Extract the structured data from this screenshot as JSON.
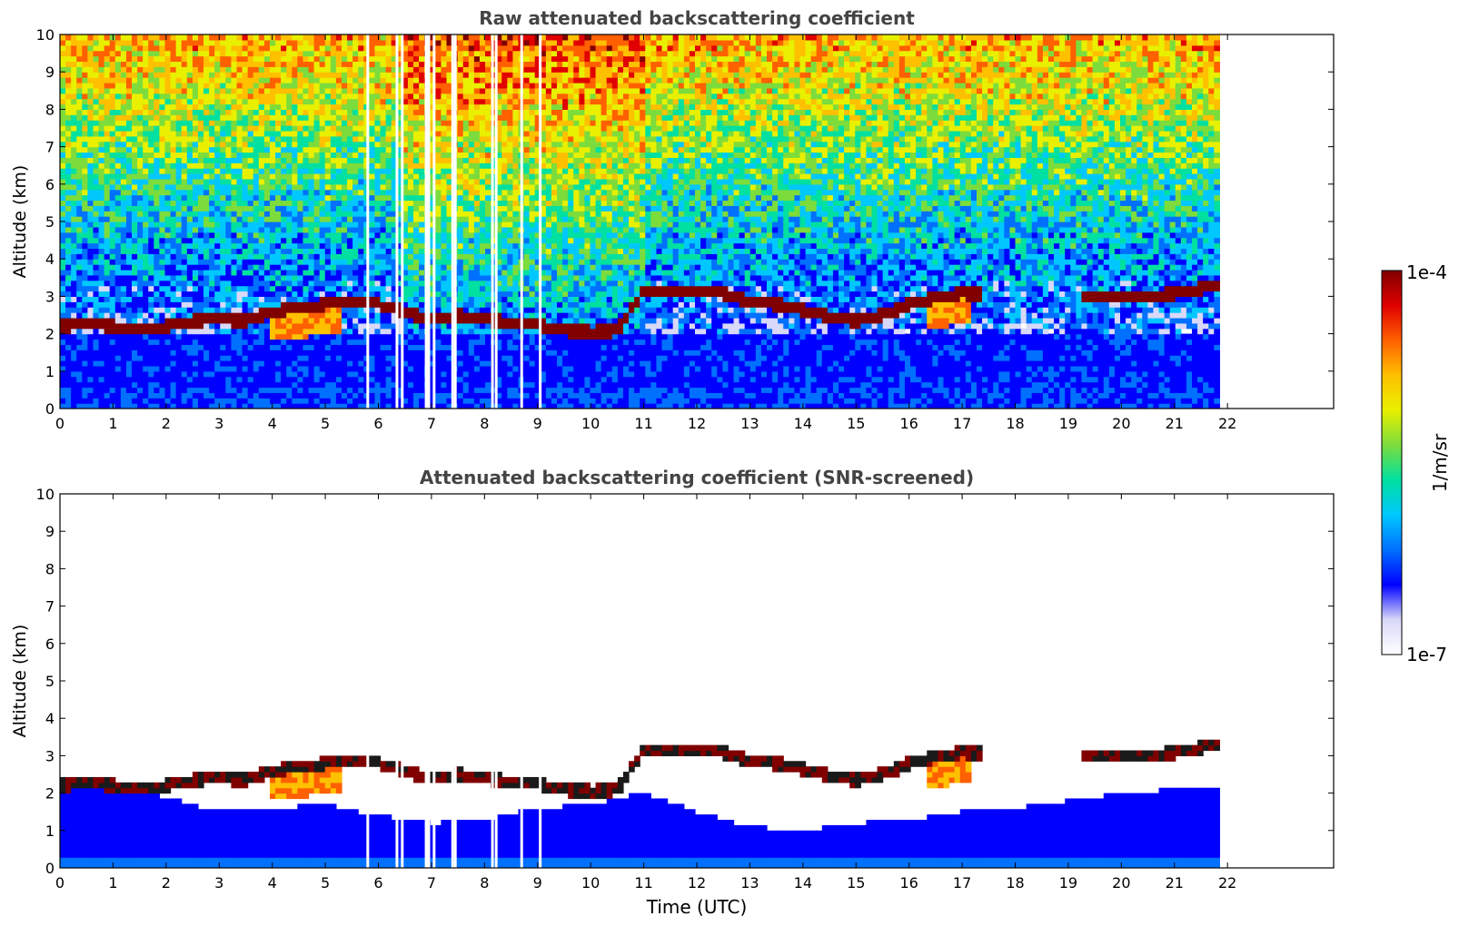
{
  "colors": {
    "colormap": [
      "#ffffff",
      "#d8d8f8",
      "#0000ff",
      "#0070ff",
      "#00c8ff",
      "#00e0a0",
      "#7cdc3c",
      "#e8f000",
      "#ffc000",
      "#ff6000",
      "#e00000",
      "#800000"
    ],
    "cloud_core": "#8b0000",
    "cloud_edge": "#1a1a1a"
  },
  "chart_data": [
    {
      "type": "heatmap",
      "title": "Raw attenuated backscattering coefficient",
      "xlabel": "",
      "ylabel": "Altitude (km)",
      "xlim": [
        0,
        24
      ],
      "ylim": [
        0,
        10
      ],
      "xticks": [
        "0",
        "1",
        "2",
        "3",
        "4",
        "5",
        "6",
        "7",
        "8",
        "9",
        "10",
        "11",
        "12",
        "13",
        "14",
        "15",
        "16",
        "17",
        "18",
        "19",
        "20",
        "21",
        "22"
      ],
      "yticks": [
        "0",
        "1",
        "2",
        "3",
        "4",
        "5",
        "6",
        "7",
        "8",
        "9",
        "10"
      ],
      "data_time_range": [
        0,
        21.85
      ],
      "missing_time_hours": [
        5.8,
        6.35,
        6.45,
        6.9,
        6.95,
        7.05,
        7.4,
        7.45,
        8.15,
        8.22,
        8.7,
        9.05
      ],
      "cloud_layer": {
        "time": [
          0,
          0.5,
          1,
          1.5,
          2,
          2.5,
          3,
          3.5,
          4,
          4.5,
          5,
          5.5,
          6,
          6.5,
          7,
          7.5,
          8,
          8.5,
          9,
          9.5,
          10,
          10.5,
          11,
          11.5,
          12,
          12.5,
          13,
          13.5,
          14,
          14.5,
          15,
          15.5,
          16,
          16.5,
          17,
          17.4
        ],
        "altitude_km": [
          2.2,
          2.3,
          2.2,
          2.15,
          2.2,
          2.35,
          2.4,
          2.35,
          2.6,
          2.7,
          2.8,
          2.9,
          2.8,
          2.6,
          2.4,
          2.5,
          2.4,
          2.3,
          2.25,
          2.1,
          2.05,
          2.1,
          3.15,
          3.1,
          3.1,
          3.1,
          2.85,
          2.8,
          2.65,
          2.45,
          2.35,
          2.5,
          2.8,
          2.95,
          3.1,
          3.05
        ]
      },
      "cloud_layer_late": {
        "time": [
          19.3,
          19.8,
          20.3,
          20.8,
          21.3,
          21.85
        ],
        "altitude_km": [
          2.95,
          3.0,
          3.05,
          3.05,
          3.15,
          3.35
        ]
      }
    },
    {
      "type": "heatmap",
      "title": "Attenuated backscattering coefficient (SNR-screened)",
      "xlabel": "Time (UTC)",
      "ylabel": "Altitude (km)",
      "xlim": [
        0,
        24
      ],
      "ylim": [
        0,
        10
      ],
      "xticks": [
        "0",
        "1",
        "2",
        "3",
        "4",
        "5",
        "6",
        "7",
        "8",
        "9",
        "10",
        "11",
        "12",
        "13",
        "14",
        "15",
        "16",
        "17",
        "18",
        "19",
        "20",
        "21",
        "22"
      ],
      "yticks": [
        "0",
        "1",
        "2",
        "3",
        "4",
        "5",
        "6",
        "7",
        "8",
        "9",
        "10"
      ],
      "data_time_range": [
        0,
        21.85
      ],
      "boundary_layer_top_km": {
        "time": [
          0,
          1,
          2,
          3,
          4,
          5,
          6,
          7,
          8,
          9,
          10,
          11,
          12,
          13,
          14,
          15,
          16,
          17,
          18,
          19,
          20,
          21,
          21.85
        ],
        "altitude_km": [
          2.3,
          2.1,
          1.9,
          1.5,
          1.6,
          1.7,
          1.4,
          1.2,
          1.3,
          1.6,
          1.7,
          2.0,
          1.5,
          1.1,
          1.0,
          1.2,
          1.3,
          1.5,
          1.6,
          1.8,
          2.0,
          2.1,
          2.2
        ]
      }
    }
  ],
  "colorbar": {
    "max_label": "1e-4",
    "min_label": "1e-7",
    "label": "1/m/sr"
  }
}
